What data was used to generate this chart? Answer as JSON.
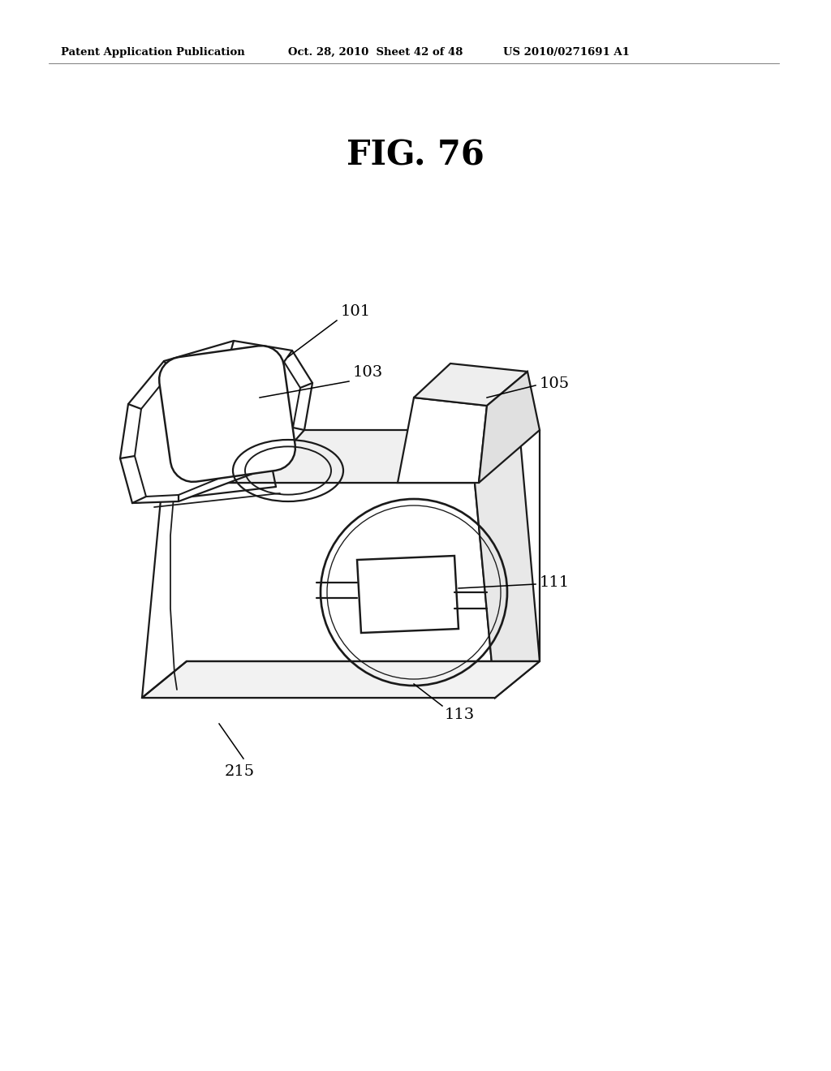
{
  "header_left": "Patent Application Publication",
  "header_mid": "Oct. 28, 2010  Sheet 42 of 48",
  "header_right": "US 2010/0271691 A1",
  "fig_title": "FIG. 76",
  "bg_color": "#ffffff",
  "line_color": "#1a1a1a",
  "line_width": 1.6
}
